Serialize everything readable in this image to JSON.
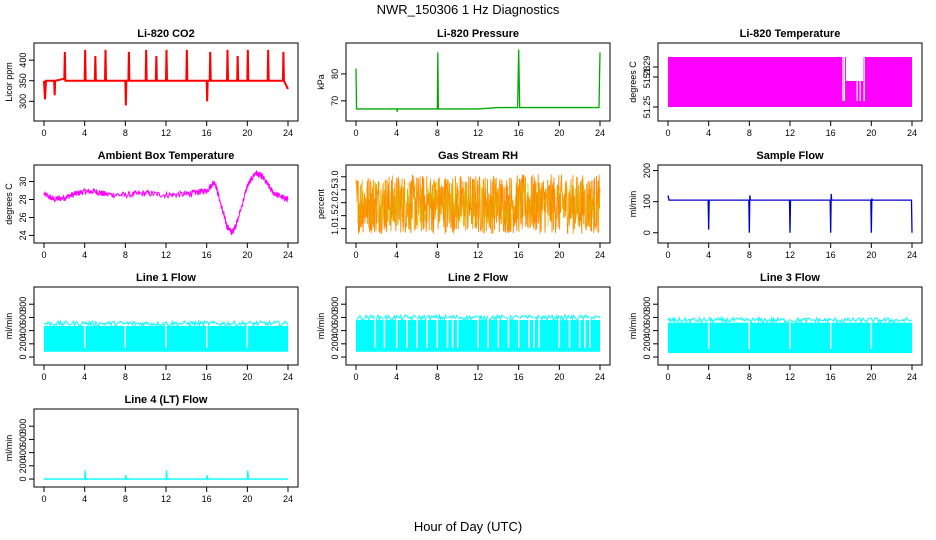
{
  "title": "NWR_150306  1 Hz Diagnostics",
  "xlabel": "Hour of Day (UTC)",
  "chart_data": [
    {
      "type": "line",
      "title": "Li-820 CO2",
      "ylabel": "Licor ppm",
      "color": "#ff0000",
      "xticks": [
        0,
        4,
        8,
        12,
        16,
        20,
        24
      ],
      "yticks": [
        300,
        350,
        400
      ],
      "xlim": [
        0,
        24
      ],
      "ylim": [
        262,
        432
      ],
      "series": [
        {
          "baseline": 350,
          "points": [
            [
              0,
              350
            ],
            [
              0.1,
              305
            ],
            [
              0.2,
              350
            ],
            [
              1.0,
              350
            ],
            [
              1.05,
              315
            ],
            [
              1.1,
              350
            ],
            [
              2.0,
              355
            ],
            [
              2.05,
              420
            ],
            [
              2.1,
              350
            ],
            [
              4.0,
              350
            ],
            [
              4.05,
              425
            ],
            [
              4.1,
              350
            ],
            [
              5.0,
              350
            ],
            [
              5.05,
              410
            ],
            [
              5.1,
              350
            ],
            [
              6.0,
              350
            ],
            [
              6.05,
              425
            ],
            [
              6.1,
              350
            ],
            [
              8.0,
              350
            ],
            [
              8.05,
              290
            ],
            [
              8.1,
              350
            ],
            [
              8.3,
              350
            ],
            [
              8.35,
              420
            ],
            [
              8.4,
              350
            ],
            [
              10.0,
              350
            ],
            [
              10.05,
              425
            ],
            [
              10.1,
              350
            ],
            [
              11.0,
              350
            ],
            [
              11.05,
              410
            ],
            [
              11.1,
              350
            ],
            [
              12.0,
              350
            ],
            [
              12.05,
              425
            ],
            [
              12.1,
              350
            ],
            [
              14.0,
              350
            ],
            [
              14.05,
              425
            ],
            [
              14.1,
              350
            ],
            [
              16.0,
              350
            ],
            [
              16.05,
              300
            ],
            [
              16.1,
              350
            ],
            [
              16.3,
              350
            ],
            [
              16.35,
              420
            ],
            [
              16.4,
              350
            ],
            [
              18.0,
              350
            ],
            [
              18.05,
              425
            ],
            [
              18.1,
              350
            ],
            [
              19.0,
              350
            ],
            [
              19.05,
              410
            ],
            [
              19.1,
              350
            ],
            [
              20.0,
              350
            ],
            [
              20.05,
              425
            ],
            [
              20.1,
              350
            ],
            [
              22.0,
              350
            ],
            [
              22.05,
              425
            ],
            [
              22.1,
              350
            ],
            [
              23.5,
              350
            ],
            [
              23.55,
              420
            ],
            [
              23.6,
              350
            ],
            [
              24.0,
              330
            ]
          ]
        }
      ]
    },
    {
      "type": "line",
      "title": "Li-820 Pressure",
      "ylabel": "kPa",
      "color": "#00aa00",
      "xticks": [
        0,
        4,
        8,
        12,
        16,
        20,
        24
      ],
      "yticks": [
        70,
        80
      ],
      "xlim": [
        0,
        24
      ],
      "ylim": [
        64,
        90
      ],
      "series": [
        {
          "points": [
            [
              0,
              82
            ],
            [
              0.05,
              67
            ],
            [
              4,
              67
            ],
            [
              4.05,
              66
            ],
            [
              4.1,
              67
            ],
            [
              8,
              67
            ],
            [
              8.05,
              88
            ],
            [
              8.1,
              67
            ],
            [
              12,
              67
            ],
            [
              14,
              67.5
            ],
            [
              15.9,
              67.5
            ],
            [
              16,
              89
            ],
            [
              16.1,
              67.5
            ],
            [
              23.9,
              67.5
            ],
            [
              24,
              88
            ]
          ]
        }
      ]
    },
    {
      "type": "area",
      "title": "Li-820 Temperature",
      "ylabel": "degrees C",
      "color": "#ff00ff",
      "xticks": [
        0,
        4,
        8,
        12,
        16,
        20,
        24
      ],
      "yticks": [
        51.25,
        51.28,
        51.29
      ],
      "yticklabels": [
        "51.25",
        "51.28",
        "51.29"
      ],
      "xlim": [
        0,
        24
      ],
      "ylim": [
        51.24,
        51.31
      ],
      "bands": [
        {
          "x0": 0,
          "x1": 17.5,
          "y0": 51.25,
          "y1": 51.3
        },
        {
          "x0": 17.5,
          "x1": 19.2,
          "y0": 51.25,
          "y1": 51.276
        },
        {
          "x0": 19.2,
          "x1": 24,
          "y0": 51.25,
          "y1": 51.3
        }
      ]
    },
    {
      "type": "line",
      "title": "Ambient Box Temperature",
      "ylabel": "degrees C",
      "color": "#ff00ff",
      "xticks": [
        0,
        4,
        8,
        12,
        16,
        20,
        24
      ],
      "yticks": [
        24,
        26,
        28,
        30
      ],
      "xlim": [
        0,
        24
      ],
      "ylim": [
        23.6,
        31.4
      ],
      "series": [
        {
          "points": [
            [
              0,
              28.6
            ],
            [
              1,
              28.0
            ],
            [
              2,
              28.2
            ],
            [
              3,
              28.6
            ],
            [
              4,
              28.9
            ],
            [
              5,
              28.9
            ],
            [
              6,
              28.6
            ],
            [
              8,
              28.5
            ],
            [
              10,
              28.7
            ],
            [
              12,
              28.5
            ],
            [
              14,
              28.6
            ],
            [
              15,
              28.8
            ],
            [
              16,
              29.0
            ],
            [
              16.8,
              30.0
            ],
            [
              17.5,
              27.0
            ],
            [
              18,
              25.0
            ],
            [
              18.5,
              24.3
            ],
            [
              19,
              25.5
            ],
            [
              20,
              29.5
            ],
            [
              20.8,
              31.0
            ],
            [
              21.5,
              30.5
            ],
            [
              22.5,
              28.8
            ],
            [
              23.5,
              28.2
            ],
            [
              24,
              28.0
            ]
          ],
          "noise": 0.35
        }
      ]
    },
    {
      "type": "line",
      "title": "Gas Stream RH",
      "ylabel": "percent",
      "color": "#ff8c00",
      "accent": "#cccc00",
      "xticks": [
        0,
        4,
        8,
        12,
        16,
        20,
        24
      ],
      "yticks": [
        1.0,
        1.5,
        2.0,
        2.5,
        3.0
      ],
      "yticklabels": [
        "1.0",
        "1.5",
        "2.0",
        "2.5",
        "3.0"
      ],
      "xlim": [
        0,
        24
      ],
      "ylim": [
        0.6,
        3.3
      ],
      "series": [
        {
          "center": 1.95,
          "low": 0.8,
          "high": 3.1
        }
      ]
    },
    {
      "type": "line",
      "title": "Sample Flow",
      "ylabel": "ml/min",
      "color": "#0000cc",
      "xticks": [
        0,
        4,
        8,
        12,
        16,
        20,
        24
      ],
      "yticks": [
        0,
        100,
        200
      ],
      "xlim": [
        0,
        24
      ],
      "ylim": [
        -20,
        205
      ],
      "series": [
        {
          "points": [
            [
              0,
              120
            ],
            [
              0.1,
              105
            ],
            [
              3.95,
              105
            ],
            [
              4,
              10
            ],
            [
              4.05,
              105
            ],
            [
              7.95,
              105
            ],
            [
              8,
              0
            ],
            [
              8.05,
              120
            ],
            [
              8.1,
              105
            ],
            [
              11.95,
              105
            ],
            [
              12,
              0
            ],
            [
              12.05,
              105
            ],
            [
              15.95,
              105
            ],
            [
              16,
              0
            ],
            [
              16.05,
              125
            ],
            [
              16.1,
              105
            ],
            [
              19.95,
              105
            ],
            [
              20,
              0
            ],
            [
              20.05,
              110
            ],
            [
              20.1,
              105
            ],
            [
              23.95,
              105
            ],
            [
              24,
              0
            ]
          ]
        }
      ]
    },
    {
      "type": "line",
      "title": "Line 1 Flow",
      "ylabel": "ml/min",
      "color": "#00ffff",
      "xticks": [
        0,
        4,
        8,
        12,
        16,
        20,
        24
      ],
      "yticks": [
        0,
        200,
        400,
        600,
        800
      ],
      "xlim": [
        0,
        24
      ],
      "ylim": [
        -60,
        1000
      ],
      "series": [
        {
          "low": 80,
          "high": 470,
          "gaps": [
            4,
            8,
            12,
            16,
            20,
            24
          ]
        }
      ]
    },
    {
      "type": "line",
      "title": "Line 2 Flow",
      "ylabel": "ml/min",
      "color": "#00ffff",
      "xticks": [
        0,
        4,
        8,
        12,
        16,
        20,
        24
      ],
      "yticks": [
        0,
        200,
        400,
        600,
        800
      ],
      "xlim": [
        0,
        24
      ],
      "ylim": [
        -60,
        1000
      ],
      "series": [
        {
          "low": 80,
          "high": 560,
          "gaps": [
            1.9,
            2.8,
            4,
            5,
            6,
            7,
            8,
            9,
            9.5,
            10,
            12,
            13,
            14,
            15,
            16,
            17,
            17.5,
            18,
            20,
            21,
            22,
            22.5,
            23
          ]
        }
      ]
    },
    {
      "type": "line",
      "title": "Line 3 Flow",
      "ylabel": "ml/min",
      "color": "#00ffff",
      "xticks": [
        0,
        4,
        8,
        12,
        16,
        20,
        24
      ],
      "yticks": [
        0,
        200,
        400,
        600,
        800
      ],
      "xlim": [
        0,
        24
      ],
      "ylim": [
        -60,
        1000
      ],
      "series": [
        {
          "low": 60,
          "high": 520,
          "gaps": [
            4,
            8,
            12,
            16,
            20,
            24
          ]
        }
      ]
    },
    {
      "type": "line",
      "title": "Line 4 (LT) Flow",
      "ylabel": "ml/min",
      "color": "#00ffff",
      "xticks": [
        0,
        4,
        8,
        12,
        16,
        20,
        24
      ],
      "yticks": [
        0,
        200,
        400,
        600,
        800
      ],
      "xlim": [
        0,
        24
      ],
      "ylim": [
        -60,
        1000
      ],
      "series": [
        {
          "baseline": 0,
          "points": [
            [
              0,
              0
            ],
            [
              4,
              0
            ],
            [
              4.05,
              130
            ],
            [
              4.1,
              0
            ],
            [
              8,
              0
            ],
            [
              8.05,
              60
            ],
            [
              8.1,
              0
            ],
            [
              12,
              0
            ],
            [
              12.05,
              130
            ],
            [
              12.1,
              0
            ],
            [
              16,
              0
            ],
            [
              16.05,
              60
            ],
            [
              16.1,
              0
            ],
            [
              20,
              0
            ],
            [
              20.05,
              130
            ],
            [
              20.1,
              0
            ],
            [
              24,
              0
            ]
          ]
        }
      ]
    }
  ]
}
